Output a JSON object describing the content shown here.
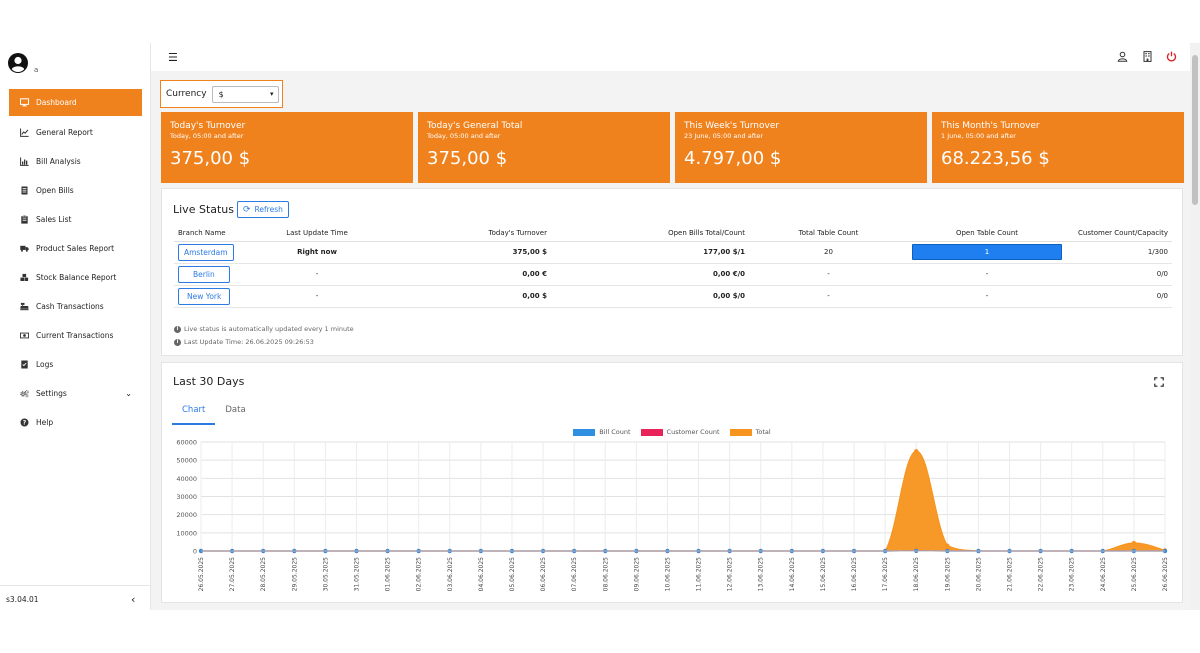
{
  "user": {
    "name": "a"
  },
  "sidebar": {
    "items": [
      {
        "label": "Dashboard",
        "icon": "monitor-icon",
        "active": true
      },
      {
        "label": "General Report",
        "icon": "line-chart-icon"
      },
      {
        "label": "Bill Analysis",
        "icon": "bar-chart-icon"
      },
      {
        "label": "Open Bills",
        "icon": "receipt-icon"
      },
      {
        "label": "Sales List",
        "icon": "clipboard-icon"
      },
      {
        "label": "Product Sales Report",
        "icon": "truck-icon"
      },
      {
        "label": "Stock Balance Report",
        "icon": "cubes-icon"
      },
      {
        "label": "Cash Transactions",
        "icon": "cash-register-icon"
      },
      {
        "label": "Current Transactions",
        "icon": "money-icon"
      },
      {
        "label": "Logs",
        "icon": "logs-icon"
      },
      {
        "label": "Settings",
        "icon": "cogs-icon",
        "has_children": true
      },
      {
        "label": "Help",
        "icon": "question-icon"
      }
    ],
    "version": "s3.04.01"
  },
  "currency": {
    "label": "Currency",
    "selected": "$"
  },
  "kpis": [
    {
      "title": "Today's Turnover",
      "subtitle": "Today, 05:00 and after",
      "value": "375,00 $"
    },
    {
      "title": "Today's General Total",
      "subtitle": "Today, 05:00 and after",
      "value": "375,00 $"
    },
    {
      "title": "This Week's Turnover",
      "subtitle": "23 June, 05:00 and after",
      "value": "4.797,00 $"
    },
    {
      "title": "This Month's Turnover",
      "subtitle": "1 June, 05:00 and after",
      "value": "68.223,56 $"
    }
  ],
  "live": {
    "title": "Live Status",
    "refresh_label": "Refresh",
    "columns": [
      "Branch Name",
      "Last Update Time",
      "Today's Turnover",
      "Open Bills Total/Count",
      "Total Table Count",
      "Open Table Count",
      "Customer Count/Capacity"
    ],
    "rows": [
      {
        "branch": "Amsterdam",
        "last_update": "Right now",
        "turnover": "375,00 $",
        "open_bills": "177,00 $/1",
        "total_tables": "20",
        "open_tables": "1",
        "customers": "1/300"
      },
      {
        "branch": "Berlin",
        "last_update": "-",
        "turnover": "0,00 €",
        "open_bills": "0,00 €/0",
        "total_tables": "-",
        "open_tables": "-",
        "customers": "0/0"
      },
      {
        "branch": "New York",
        "last_update": "-",
        "turnover": "0,00 $",
        "open_bills": "0,00 $/0",
        "total_tables": "-",
        "open_tables": "-",
        "customers": "0/0"
      }
    ],
    "note1": "Live status is automatically updated every 1 minute",
    "note2": "Last Update Time: 26.06.2025 09:26:53"
  },
  "last30": {
    "title": "Last 30 Days",
    "tabs": [
      "Chart",
      "Data"
    ]
  },
  "chart_data": {
    "type": "area",
    "title": "",
    "xlabel": "",
    "ylabel": "",
    "ylim": [
      0,
      60000
    ],
    "yticks": [
      "0",
      "10000",
      "20000",
      "30000",
      "40000",
      "50000",
      "60000"
    ],
    "legend_position": "top",
    "grid": true,
    "x": [
      "26.05.2025",
      "27.05.2025",
      "28.05.2025",
      "29.05.2025",
      "30.05.2025",
      "31.05.2025",
      "01.06.2025",
      "02.06.2025",
      "03.06.2025",
      "04.06.2025",
      "05.06.2025",
      "06.06.2025",
      "07.06.2025",
      "08.06.2025",
      "09.06.2025",
      "10.06.2025",
      "11.06.2025",
      "12.06.2025",
      "13.06.2025",
      "14.06.2025",
      "15.06.2025",
      "16.06.2025",
      "17.06.2025",
      "18.06.2025",
      "19.06.2025",
      "20.06.2025",
      "21.06.2025",
      "22.06.2025",
      "23.06.2025",
      "24.06.2025",
      "25.06.2025",
      "26.06.2025"
    ],
    "series": [
      {
        "name": "Bill Count",
        "color": "#2f8fe0",
        "values": [
          0,
          0,
          0,
          0,
          0,
          0,
          0,
          0,
          0,
          0,
          0,
          0,
          0,
          0,
          0,
          0,
          0,
          0,
          0,
          0,
          0,
          0,
          0,
          45,
          4,
          0,
          0,
          0,
          0,
          0,
          6,
          2
        ]
      },
      {
        "name": "Customer Count",
        "color": "#e8235a",
        "values": [
          0,
          0,
          0,
          0,
          0,
          0,
          0,
          0,
          0,
          0,
          0,
          0,
          0,
          0,
          0,
          0,
          0,
          0,
          0,
          0,
          0,
          0,
          0,
          60,
          5,
          0,
          0,
          0,
          0,
          0,
          8,
          2
        ]
      },
      {
        "name": "Total",
        "color": "#f7941d",
        "values": [
          0,
          0,
          0,
          0,
          0,
          0,
          0,
          0,
          0,
          0,
          0,
          0,
          0,
          0,
          0,
          0,
          0,
          0,
          0,
          0,
          0,
          0,
          0,
          55000,
          3000,
          0,
          0,
          0,
          0,
          0,
          4400,
          375
        ]
      }
    ]
  }
}
